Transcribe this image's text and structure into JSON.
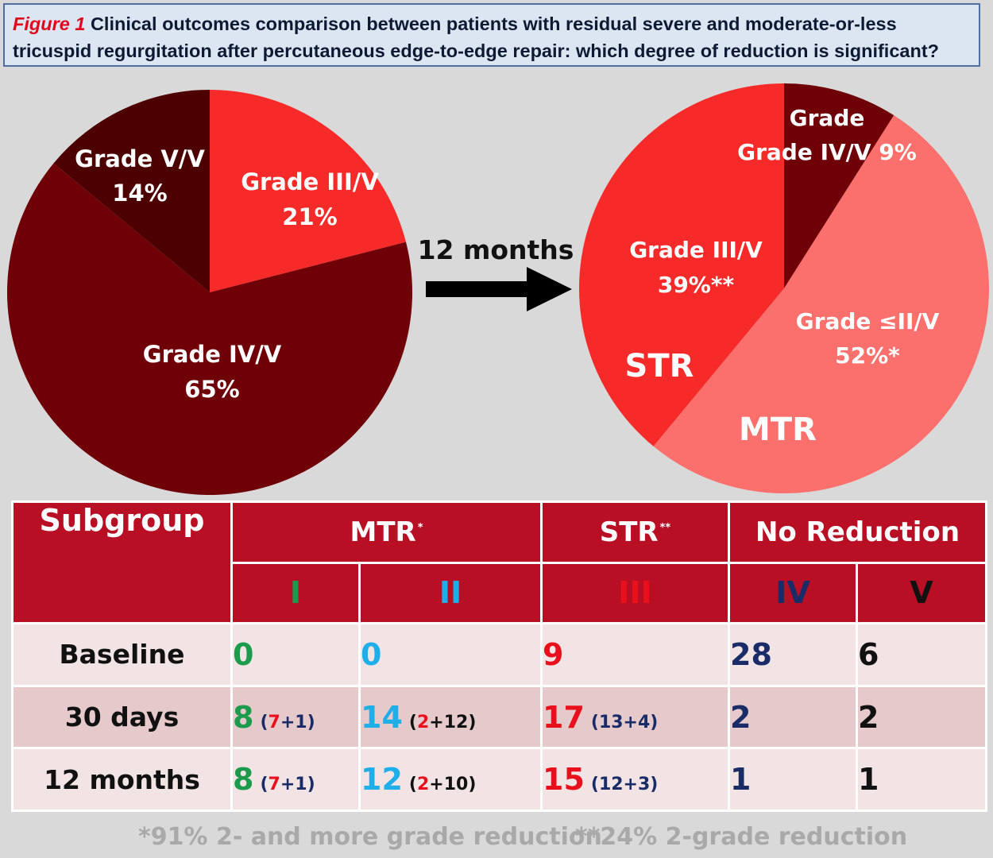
{
  "title": {
    "figure_label": "Figure 1",
    "text": "Clinical outcomes comparison between patients with residual severe and moderate-or-less tricuspid regurgitation after percutaneous edge-to-edge repair: which degree of reduction is significant?"
  },
  "colors": {
    "dark_red": "#700007",
    "darkest_red": "#4c0000",
    "red": "#f72a2a",
    "salmon": "#fb706c",
    "header_red": "#b80f24",
    "grade_I_green": "#1c9b4c",
    "grade_II_cyan": "#1eaee8",
    "grade_III_red": "#e8101c",
    "grade_IV_navy": "#1a2c68"
  },
  "chart_data": [
    {
      "type": "pie",
      "title": "",
      "slices": [
        {
          "label": "Grade III/V",
          "value": 21,
          "value_text": "21%",
          "color": "#f72a2a"
        },
        {
          "label": "Grade IV/V",
          "value": 65,
          "value_text": "65%",
          "color": "#700007"
        },
        {
          "label": "Grade V/V",
          "value": 14,
          "value_text": "14%",
          "color": "#4c0000"
        }
      ]
    },
    {
      "type": "pie",
      "title": "",
      "slices": [
        {
          "label": "Grade IV/V",
          "value": 9,
          "value_text": "9%",
          "color": "#700007"
        },
        {
          "label": "Grade ≤II/V",
          "value": 52,
          "value_text": "52%*",
          "color": "#fb706c"
        },
        {
          "label": "Grade III/V",
          "value": 39,
          "value_text": "39%**",
          "color": "#f72a2a"
        }
      ],
      "region_labels": [
        "STR",
        "MTR"
      ]
    }
  ],
  "arrow": {
    "label": "12 months"
  },
  "table": {
    "headers": {
      "subgroup": "Subgroup",
      "mtr": "MTR",
      "mtr_mark": "*",
      "str": "STR",
      "str_mark": "**",
      "no_reduction": "No Reduction"
    },
    "grades": [
      "I",
      "II",
      "III",
      "IV",
      "V"
    ],
    "rows": [
      {
        "label": "Baseline",
        "I": "0",
        "II": "0",
        "III": "9",
        "IV": "28",
        "V": "6"
      },
      {
        "label": "30 days",
        "I": "8",
        "I_detail": [
          "(",
          "7",
          "+1)"
        ],
        "II": "14",
        "II_detail": [
          "(",
          "2",
          "+12)"
        ],
        "III": "17",
        "III_detail": "(13+4)",
        "IV": "2",
        "V": "2"
      },
      {
        "label": "12 months",
        "I": "8",
        "I_detail": [
          "(",
          "7",
          "+1)"
        ],
        "II": "12",
        "II_detail": [
          "(",
          "2",
          "+10)"
        ],
        "III": "15",
        "III_detail": "(12+3)",
        "IV": "1",
        "V": "1"
      }
    ]
  },
  "footnotes": {
    "mtr": "*91% 2- and more grade reduction",
    "str": "**24% 2-grade reduction"
  }
}
